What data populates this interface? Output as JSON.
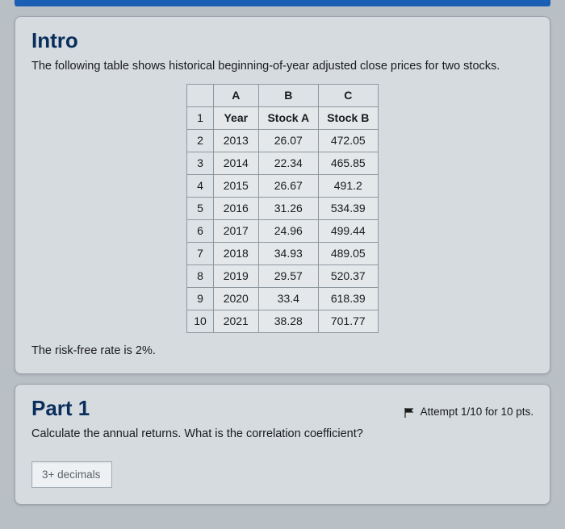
{
  "intro": {
    "title": "Intro",
    "description": "The following table shows historical beginning-of-year adjusted close prices for two stocks.",
    "footer": "The risk-free rate is 2%."
  },
  "table": {
    "col_headers": [
      "A",
      "B",
      "C"
    ],
    "rows": [
      {
        "n": "1",
        "a": "Year",
        "b": "Stock A",
        "c": "Stock B",
        "header": true
      },
      {
        "n": "2",
        "a": "2013",
        "b": "26.07",
        "c": "472.05"
      },
      {
        "n": "3",
        "a": "2014",
        "b": "22.34",
        "c": "465.85"
      },
      {
        "n": "4",
        "a": "2015",
        "b": "26.67",
        "c": "491.2"
      },
      {
        "n": "5",
        "a": "2016",
        "b": "31.26",
        "c": "534.39"
      },
      {
        "n": "6",
        "a": "2017",
        "b": "24.96",
        "c": "499.44"
      },
      {
        "n": "7",
        "a": "2018",
        "b": "34.93",
        "c": "489.05"
      },
      {
        "n": "8",
        "a": "2019",
        "b": "29.57",
        "c": "520.37"
      },
      {
        "n": "9",
        "a": "2020",
        "b": "33.4",
        "c": "618.39"
      },
      {
        "n": "10",
        "a": "2021",
        "b": "38.28",
        "c": "701.77"
      }
    ]
  },
  "part1": {
    "title": "Part 1",
    "attempt": "Attempt 1/10 for 10 pts.",
    "question": "Calculate the annual returns. What is the correlation coefficient?",
    "placeholder": "3+ decimals"
  },
  "colors": {
    "page_bg": "#b8bfc5",
    "card_bg": "#d6dbe0",
    "title_color": "#0a2e5c",
    "topbar": "#1a5fb4",
    "border": "#9ca5ad"
  }
}
